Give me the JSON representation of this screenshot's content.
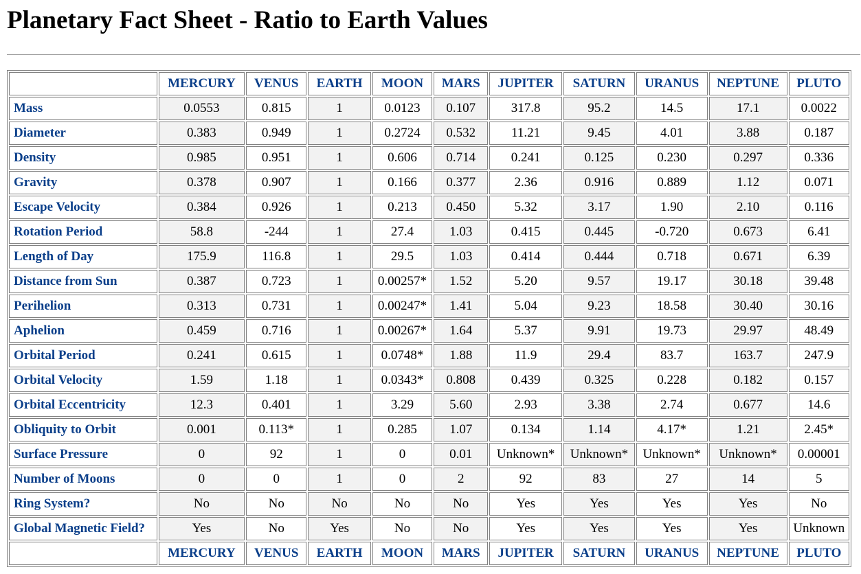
{
  "title": "Planetary Fact Sheet - Ratio to Earth Values",
  "columns": [
    "MERCURY",
    "VENUS",
    "EARTH",
    "MOON",
    "MARS",
    "JUPITER",
    "SATURN",
    "URANUS",
    "NEPTUNE",
    "PLUTO"
  ],
  "rows": [
    {
      "label": "Mass",
      "values": [
        "0.0553",
        "0.815",
        "1",
        "0.0123",
        "0.107",
        "317.8",
        "95.2",
        "14.5",
        "17.1",
        "0.0022"
      ]
    },
    {
      "label": "Diameter",
      "values": [
        "0.383",
        "0.949",
        "1",
        "0.2724",
        "0.532",
        "11.21",
        "9.45",
        "4.01",
        "3.88",
        "0.187"
      ]
    },
    {
      "label": "Density",
      "values": [
        "0.985",
        "0.951",
        "1",
        "0.606",
        "0.714",
        "0.241",
        "0.125",
        "0.230",
        "0.297",
        "0.336"
      ]
    },
    {
      "label": "Gravity",
      "values": [
        "0.378",
        "0.907",
        "1",
        "0.166",
        "0.377",
        "2.36",
        "0.916",
        "0.889",
        "1.12",
        "0.071"
      ]
    },
    {
      "label": "Escape Velocity",
      "values": [
        "0.384",
        "0.926",
        "1",
        "0.213",
        "0.450",
        "5.32",
        "3.17",
        "1.90",
        "2.10",
        "0.116"
      ]
    },
    {
      "label": "Rotation Period",
      "values": [
        "58.8",
        "-244",
        "1",
        "27.4",
        "1.03",
        "0.415",
        "0.445",
        "-0.720",
        "0.673",
        "6.41"
      ]
    },
    {
      "label": "Length of Day",
      "values": [
        "175.9",
        "116.8",
        "1",
        "29.5",
        "1.03",
        "0.414",
        "0.444",
        "0.718",
        "0.671",
        "6.39"
      ]
    },
    {
      "label": "Distance from Sun",
      "values": [
        "0.387",
        "0.723",
        "1",
        "0.00257*",
        "1.52",
        "5.20",
        "9.57",
        "19.17",
        "30.18",
        "39.48"
      ]
    },
    {
      "label": "Perihelion",
      "values": [
        "0.313",
        "0.731",
        "1",
        "0.00247*",
        "1.41",
        "5.04",
        "9.23",
        "18.58",
        "30.40",
        "30.16"
      ]
    },
    {
      "label": "Aphelion",
      "values": [
        "0.459",
        "0.716",
        "1",
        "0.00267*",
        "1.64",
        "5.37",
        "9.91",
        "19.73",
        "29.97",
        "48.49"
      ]
    },
    {
      "label": "Orbital Period",
      "values": [
        "0.241",
        "0.615",
        "1",
        "0.0748*",
        "1.88",
        "11.9",
        "29.4",
        "83.7",
        "163.7",
        "247.9"
      ]
    },
    {
      "label": "Orbital Velocity",
      "values": [
        "1.59",
        "1.18",
        "1",
        "0.0343*",
        "0.808",
        "0.439",
        "0.325",
        "0.228",
        "0.182",
        "0.157"
      ]
    },
    {
      "label": "Orbital Eccentricity",
      "values": [
        "12.3",
        "0.401",
        "1",
        "3.29",
        "5.60",
        "2.93",
        "3.38",
        "2.74",
        "0.677",
        "14.6"
      ]
    },
    {
      "label": "Obliquity to Orbit",
      "values": [
        "0.001",
        "0.113*",
        "1",
        "0.285",
        "1.07",
        "0.134",
        "1.14",
        "4.17*",
        "1.21",
        "2.45*"
      ]
    },
    {
      "label": "Surface Pressure",
      "values": [
        "0",
        "92",
        "1",
        "0",
        "0.01",
        "Unknown*",
        "Unknown*",
        "Unknown*",
        "Unknown*",
        "0.00001"
      ]
    },
    {
      "label": "Number of Moons",
      "values": [
        "0",
        "0",
        "1",
        "0",
        "2",
        "92",
        "83",
        "27",
        "14",
        "5"
      ]
    },
    {
      "label": "Ring System?",
      "values": [
        "No",
        "No",
        "No",
        "No",
        "No",
        "Yes",
        "Yes",
        "Yes",
        "Yes",
        "No"
      ]
    },
    {
      "label": "Global Magnetic Field?",
      "values": [
        "Yes",
        "No",
        "Yes",
        "No",
        "No",
        "Yes",
        "Yes",
        "Yes",
        "Yes",
        "Unknown"
      ]
    }
  ],
  "colors": {
    "header_text": "#0b3f8a",
    "alt_cell_bg": "#f2f2f2",
    "border": "#808080"
  }
}
